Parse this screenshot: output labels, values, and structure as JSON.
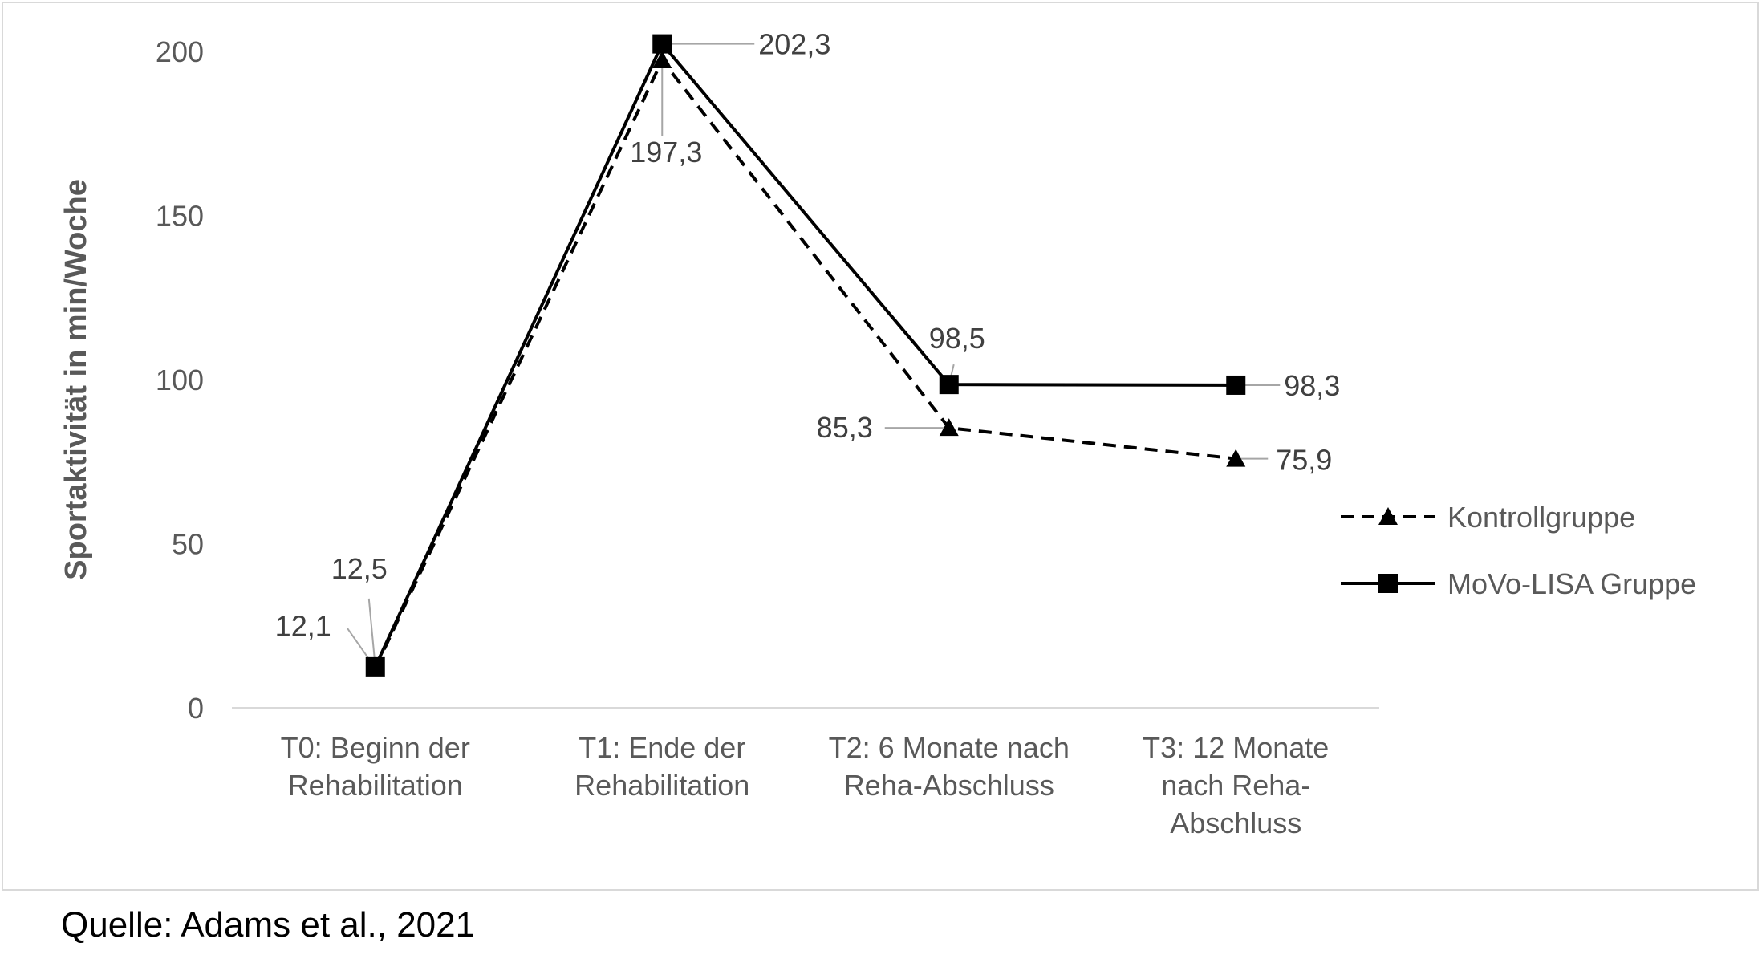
{
  "chart_data": {
    "type": "line",
    "title": "",
    "ylabel": "Sportaktivität in min/Woche",
    "xlabel": "",
    "ylim": [
      0,
      200
    ],
    "yticks": [
      0,
      50,
      100,
      150,
      200
    ],
    "grid": false,
    "legend_position": "right",
    "categories": [
      [
        "T0: Beginn der",
        "Rehabilitation"
      ],
      [
        "T1: Ende der",
        "Rehabilitation"
      ],
      [
        "T2: 6 Monate nach",
        "Reha-Abschluss"
      ],
      [
        "T3: 12 Monate",
        "nach Reha-",
        "Abschluss"
      ]
    ],
    "series": [
      {
        "name": "Kontrollgruppe",
        "style": "dashed",
        "marker": "triangle",
        "color": "#000000",
        "values": [
          12.1,
          197.3,
          85.3,
          75.9
        ],
        "labels": [
          "12,1",
          "197,3",
          "85,3",
          "75,9"
        ]
      },
      {
        "name": "MoVo-LISA Gruppe",
        "style": "solid",
        "marker": "square",
        "color": "#000000",
        "values": [
          12.5,
          202.3,
          98.5,
          98.3
        ],
        "labels": [
          "12,5",
          "202,3",
          "98,5",
          "98,3"
        ]
      }
    ]
  },
  "source": "Quelle: Adams et al., 2021"
}
